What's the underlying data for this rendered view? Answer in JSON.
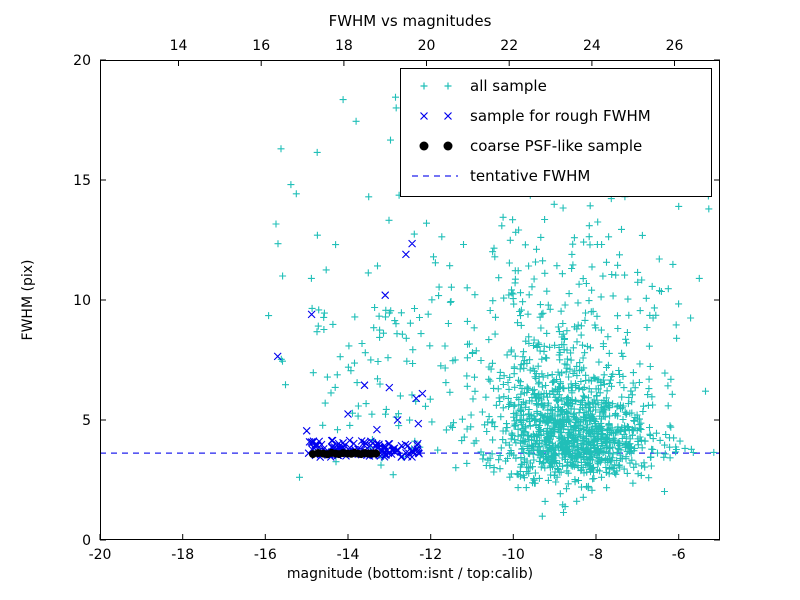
{
  "figure": {
    "background": "#ffffff"
  },
  "chart_data": {
    "type": "scatter",
    "title": "FWHM vs magnitudes",
    "xlabel": "magnitude (bottom:isnt / top:calib)",
    "ylabel": "FWHM (pix)",
    "xlim": [
      -20,
      -5
    ],
    "ylim": [
      0,
      20
    ],
    "x_ticks_bottom": [
      -20,
      -18,
      -16,
      -14,
      -12,
      -10,
      -8,
      -6
    ],
    "x_ticks_top": [
      14,
      16,
      18,
      20,
      22,
      24,
      26
    ],
    "top_axis_offset": 32.1,
    "y_ticks": [
      0,
      5,
      10,
      15,
      20
    ],
    "grid": false,
    "legend_position": "upper right",
    "seed": 42,
    "tentative_fwhm": 3.62,
    "series": [
      {
        "name": "all sample",
        "marker": "plus",
        "color": "#20bfb8",
        "clusters": [
          {
            "dist": "normal",
            "count": 700,
            "cx": -8.7,
            "cy": 4.6,
            "sx": 0.9,
            "sy": 1.1
          },
          {
            "dist": "normal",
            "count": 280,
            "cx": -8.9,
            "cy": 6.6,
            "sx": 1.1,
            "sy": 2.1
          },
          {
            "dist": "normal",
            "count": 240,
            "cx": -8.2,
            "cy": 3.7,
            "sx": 0.85,
            "sy": 0.55
          },
          {
            "dist": "uniform",
            "count": 150,
            "xmin": -12.3,
            "xmax": -6.0,
            "ymin": 3.0,
            "ymax": 12.5
          },
          {
            "dist": "uniform",
            "count": 90,
            "xmin": -15.8,
            "xmax": -5.2,
            "ymin": 2.6,
            "ymax": 18.6
          },
          {
            "dist": "uniform",
            "count": 70,
            "xmin": -14.9,
            "xmax": -12.2,
            "ymin": 3.2,
            "ymax": 9.8
          },
          {
            "dist": "uniform",
            "count": 40,
            "xmin": -10.5,
            "xmax": -7.2,
            "ymin": 12.0,
            "ymax": 16.2
          }
        ],
        "points": [
          [
            -15.62,
            16.3
          ],
          [
            -12.85,
            18.45
          ],
          [
            -15.92,
            9.35
          ],
          [
            -13.5,
            14.3
          ],
          [
            -12.1,
            13.2
          ],
          [
            -11.05,
            17.2
          ],
          [
            -6.0,
            13.9
          ],
          [
            -5.5,
            10.9
          ],
          [
            -5.35,
            6.2
          ],
          [
            -5.15,
            3.65
          ]
        ]
      },
      {
        "name": "sample for rough FWHM",
        "marker": "x",
        "color": "#0000ee",
        "clusters": [
          {
            "dist": "uniform",
            "count": 85,
            "xmin": -15.05,
            "xmax": -12.2,
            "ymin": 3.45,
            "ymax": 4.15
          },
          {
            "dist": "uniform",
            "count": 40,
            "xmin": -14.6,
            "xmax": -12.3,
            "ymin": 3.5,
            "ymax": 3.95
          }
        ],
        "points": [
          [
            -15.7,
            7.65
          ],
          [
            -14.88,
            9.4
          ],
          [
            -12.45,
            12.35
          ],
          [
            -12.6,
            11.9
          ],
          [
            -13.1,
            10.2
          ],
          [
            -12.2,
            6.1
          ],
          [
            -12.35,
            5.9
          ],
          [
            -13.0,
            6.35
          ],
          [
            -13.6,
            6.45
          ],
          [
            -14.0,
            5.25
          ],
          [
            -12.8,
            5.0
          ],
          [
            -12.3,
            4.85
          ],
          [
            -15.0,
            4.55
          ],
          [
            -13.3,
            4.6
          ]
        ]
      },
      {
        "name": "coarse PSF-like sample",
        "marker": "dot",
        "color": "#000000",
        "points": [
          [
            -14.85,
            3.58
          ],
          [
            -14.72,
            3.62
          ],
          [
            -14.6,
            3.6
          ],
          [
            -14.5,
            3.57
          ],
          [
            -14.4,
            3.63
          ],
          [
            -14.3,
            3.6
          ],
          [
            -14.22,
            3.58
          ],
          [
            -14.12,
            3.62
          ],
          [
            -14.02,
            3.6
          ],
          [
            -13.92,
            3.59
          ],
          [
            -13.84,
            3.63
          ],
          [
            -13.76,
            3.6
          ],
          [
            -13.68,
            3.58
          ],
          [
            -13.6,
            3.62
          ],
          [
            -13.52,
            3.6
          ],
          [
            -13.45,
            3.59
          ],
          [
            -13.38,
            3.61
          ],
          [
            -13.32,
            3.6
          ]
        ]
      },
      {
        "name": "tentative FWHM",
        "marker": "dashed-line",
        "color": "#2222ee",
        "y": 3.62
      }
    ]
  }
}
